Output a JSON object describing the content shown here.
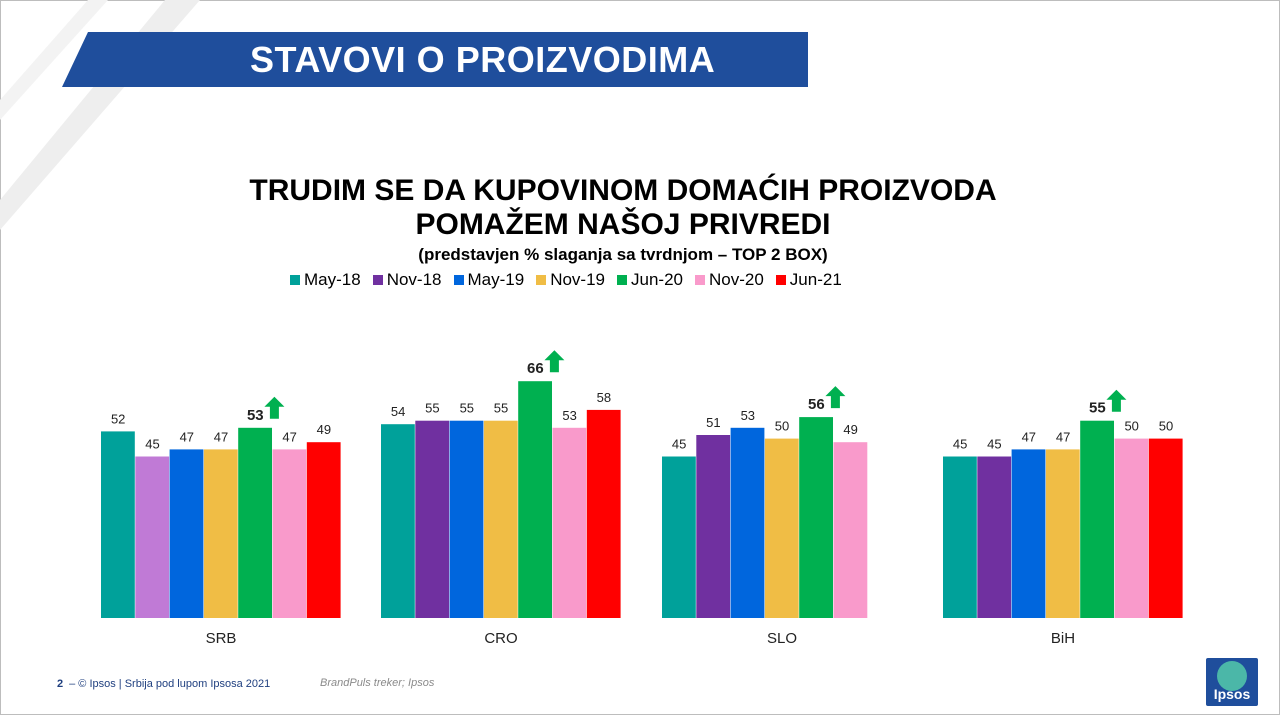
{
  "banner": {
    "title": "STAVOVI O PROIZVODIMA"
  },
  "chart_data": {
    "type": "bar",
    "title_line1": "TRUDIM SE DA KUPOVINOM DOMAĆIH PROIZVODA",
    "title_line2": "POMAŽEM NAŠOJ PRIVREDI",
    "subtitle": "(predstavjen % slaganja sa tvrdnjom – TOP 2 BOX)",
    "categories": [
      "SRB",
      "CRO",
      "SLO",
      "BiH"
    ],
    "series": [
      {
        "name": "May-18",
        "color": "#00a19a",
        "values": [
          52,
          54,
          45,
          45
        ]
      },
      {
        "name": "Nov-18",
        "color": "#7030a0",
        "values": [
          45,
          55,
          51,
          45
        ]
      },
      {
        "name": "May-19",
        "color": "#0066dd",
        "values": [
          47,
          55,
          53,
          47
        ]
      },
      {
        "name": "Nov-19",
        "color": "#f0bd45",
        "values": [
          47,
          55,
          50,
          47
        ]
      },
      {
        "name": "Jun-20",
        "color": "#00b050",
        "values": [
          53,
          66,
          56,
          55
        ]
      },
      {
        "name": "Nov-20",
        "color": "#f99acb",
        "values": [
          47,
          53,
          49,
          50
        ]
      },
      {
        "name": "Jun-21",
        "color": "#ff0000",
        "values": [
          49,
          58,
          null,
          50
        ]
      }
    ],
    "srb_nov18_color": "#c07ad6",
    "highlight_series": "Jun-20",
    "highlight_icon": "up-arrow-icon",
    "highlight_color": "#00b050",
    "ylim": [
      0,
      70
    ],
    "grid": false,
    "legend_position": "top"
  },
  "footer": {
    "page_number": "2",
    "text": "–  © Ipsos | Srbija pod lupom Ipsosa 2021",
    "source": "BrandPuls treker; Ipsos",
    "logo_text": "Ipsos"
  }
}
